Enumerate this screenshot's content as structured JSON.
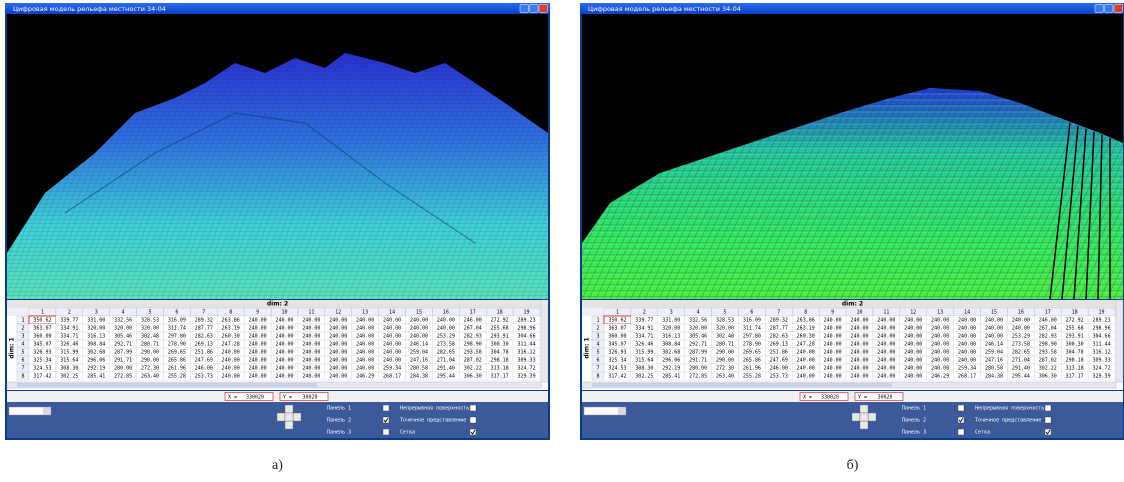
{
  "panels": [
    {
      "title": "Цифровая модель рельефа местности 34-04",
      "caption": "а)",
      "style": "mesh"
    },
    {
      "title": "Цифровая модель рельефа местности 34-04",
      "caption": "б)",
      "style": "blocks"
    }
  ],
  "table": {
    "dim_col": "dim: 2",
    "dim_row": "dim: 1",
    "columns": [
      "1",
      "2",
      "3",
      "4",
      "5",
      "6",
      "7",
      "8",
      "9",
      "10",
      "11",
      "12",
      "13",
      "14",
      "15",
      "16",
      "17",
      "18",
      "19"
    ],
    "rows": [
      {
        "label": "1",
        "cells": [
          "350.62",
          "339.77",
          "331.00",
          "332.56",
          "328.53",
          "316.09",
          "289.32",
          "263.86",
          "240.00",
          "240.00",
          "240.00",
          "240.00",
          "240.00",
          "240.00",
          "240.00",
          "240.00",
          "246.00",
          "272.92",
          "289.23"
        ]
      },
      {
        "label": "2",
        "cells": [
          "363.07",
          "334.91",
          "320.00",
          "320.00",
          "320.00",
          "311.74",
          "287.77",
          "263.19",
          "240.00",
          "240.00",
          "240.00",
          "240.00",
          "240.00",
          "240.00",
          "240.00",
          "240.00",
          "267.04",
          "255.68",
          "298.96"
        ]
      },
      {
        "label": "3",
        "cells": [
          "360.00",
          "334.71",
          "316.13",
          "305.46",
          "302.48",
          "297.80",
          "282.63",
          "260.30",
          "240.00",
          "240.00",
          "240.00",
          "240.00",
          "240.00",
          "240.00",
          "240.00",
          "253.29",
          "282.93",
          "293.91",
          "304.66"
        ]
      },
      {
        "label": "4",
        "cells": [
          "345.07",
          "326.46",
          "308.84",
          "292.71",
          "280.71",
          "278.90",
          "269.13",
          "247.28",
          "240.00",
          "240.00",
          "240.00",
          "240.00",
          "240.00",
          "240.00",
          "246.14",
          "273.58",
          "298.90",
          "300.30",
          "311.44"
        ]
      },
      {
        "label": "5",
        "cells": [
          "326.93",
          "315.99",
          "302.68",
          "287.99",
          "290.00",
          "269.65",
          "251.86",
          "240.00",
          "240.00",
          "240.00",
          "240.00",
          "240.00",
          "240.00",
          "240.00",
          "259.04",
          "282.65",
          "293.58",
          "304.78",
          "316.12"
        ]
      },
      {
        "label": "6",
        "cells": [
          "325.34",
          "315.64",
          "296.06",
          "291.71",
          "290.00",
          "265.86",
          "247.69",
          "240.00",
          "240.00",
          "240.00",
          "240.00",
          "240.00",
          "240.00",
          "240.00",
          "247.16",
          "271.04",
          "287.02",
          "298.18",
          "309.33"
        ]
      },
      {
        "label": "7",
        "cells": [
          "324.53",
          "308.30",
          "292.19",
          "280.00",
          "272.30",
          "261.96",
          "246.00",
          "240.00",
          "240.00",
          "240.00",
          "240.00",
          "240.00",
          "240.00",
          "259.34",
          "280.58",
          "291.40",
          "302.22",
          "313.18",
          "324.72"
        ]
      },
      {
        "label": "8",
        "cells": [
          "317.42",
          "302.25",
          "285.41",
          "272.85",
          "263.40",
          "255.28",
          "253.73",
          "240.00",
          "240.00",
          "240.00",
          "240.00",
          "240.00",
          "246.29",
          "268.17",
          "284.38",
          "295.44",
          "306.30",
          "317.17",
          "329.39"
        ]
      }
    ]
  },
  "controls": {
    "x_label": "X =",
    "x_value": "330020",
    "y_label": "Y =",
    "y_value": "30020",
    "checks": [
      {
        "label": "Панель 1",
        "checked": false
      },
      {
        "label": "Непрерывная поверхность",
        "checked": false
      },
      {
        "label": "Панель 2",
        "checked": true
      },
      {
        "label": "Точечное представление",
        "checked": false
      },
      {
        "label": "Панель 3",
        "checked": false
      },
      {
        "label": "Сетка",
        "checked": true
      }
    ]
  }
}
